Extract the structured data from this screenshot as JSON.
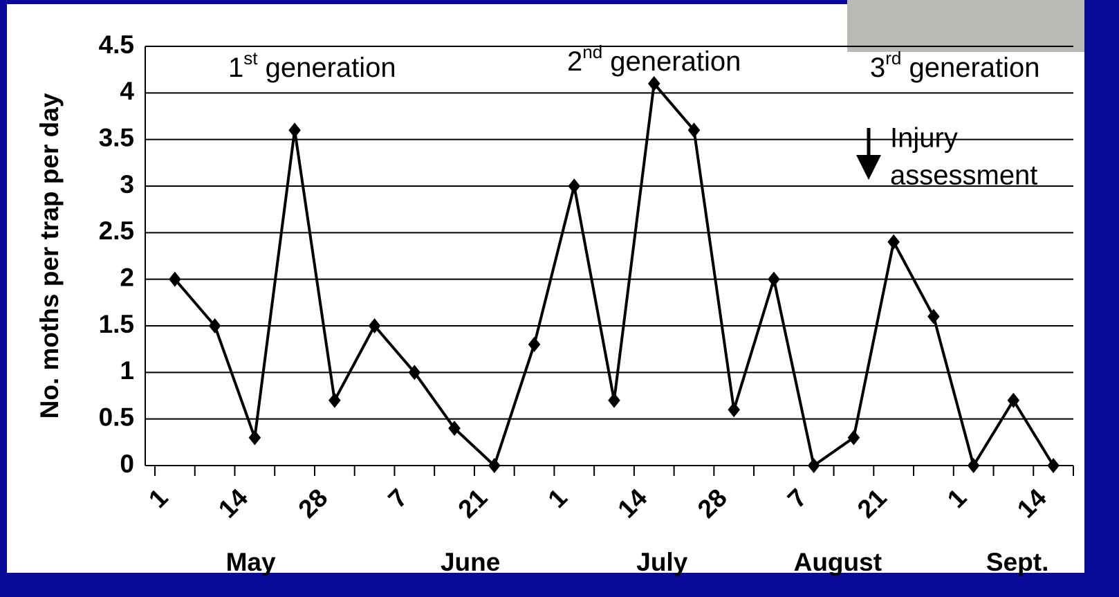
{
  "chart_data": {
    "type": "line",
    "y_label": "No. moths per trap per day",
    "x": [
      0.5,
      1.5,
      2.5,
      3.5,
      4.5,
      5.5,
      6.5,
      7.5,
      8.5,
      9.5,
      10.5,
      11.5,
      12.5,
      13.5,
      14.5,
      15.5,
      16.5,
      17.5,
      18.5,
      19.5,
      20.5,
      21.5,
      22.5
    ],
    "series": [
      {
        "color": "#000000",
        "values": [
          2,
          1.5,
          0.3,
          3.6,
          0.7,
          1.5,
          1,
          0.4,
          0,
          1.3,
          3,
          0.7,
          4.1,
          3.6,
          0.6,
          2,
          0,
          0.3,
          2.4,
          1.6,
          0,
          0.7,
          0
        ]
      }
    ],
    "xlim": [
      0,
      23
    ],
    "xticks": [
      {
        "value": 0,
        "label": "1"
      },
      {
        "value": 2,
        "label": "14"
      },
      {
        "value": 4,
        "label": "28"
      },
      {
        "value": 6,
        "label": "7"
      },
      {
        "value": 8,
        "label": "21"
      },
      {
        "value": 10,
        "label": "1"
      },
      {
        "value": 12,
        "label": "14"
      },
      {
        "value": 14,
        "label": "28"
      },
      {
        "value": 16,
        "label": "7"
      },
      {
        "value": 18,
        "label": "21"
      },
      {
        "value": 20,
        "label": "1"
      },
      {
        "value": 22,
        "label": "14"
      }
    ],
    "xminorticks": [
      0,
      1,
      2,
      3,
      4,
      5,
      6,
      7,
      8,
      9,
      10,
      11,
      12,
      13,
      14,
      15,
      16,
      17,
      18,
      19,
      20,
      21,
      22,
      23
    ],
    "x_group_labels": [
      {
        "value": 2.4,
        "label": "May"
      },
      {
        "value": 7.9,
        "label": "June"
      },
      {
        "value": 12.7,
        "label": "July"
      },
      {
        "value": 17.1,
        "label": "August"
      },
      {
        "value": 21.6,
        "label": "Sept."
      }
    ],
    "ylim": [
      0,
      4.5
    ],
    "yticks": [
      0,
      0.5,
      1,
      1.5,
      2,
      2.5,
      3,
      3.5,
      4,
      4.5
    ],
    "grid": true,
    "annotations": [
      {
        "text": "1",
        "sup": "st",
        "rest": " generation"
      },
      {
        "text": "2",
        "sup": "nd",
        "rest": " generation"
      },
      {
        "text": "3",
        "sup": "rd",
        "rest": " generation"
      }
    ],
    "injury_note": [
      "Injury",
      "assessment"
    ]
  }
}
